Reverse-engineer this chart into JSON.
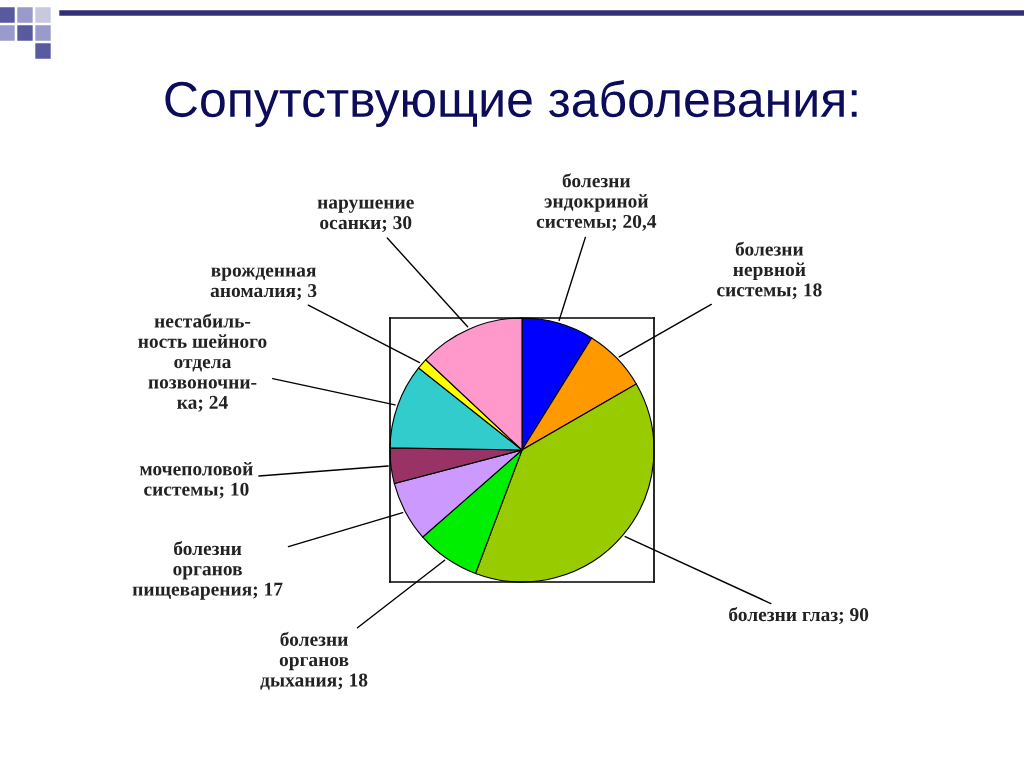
{
  "chart_data": {
    "type": "pie",
    "title": "Сопутствующие заболевания:",
    "categories": [
      "болезни\nэндокриной\nсистемы",
      "болезни\nнервной\nсистемы",
      "болезни глаз",
      "болезни\nорганов\nдыхания",
      "болезни\nорганов\nпищеварения",
      "мочеполовой\nсистемы",
      "нестабиль-\nность шейного\nотдела\nпозвоночни-\nка",
      "врожденная\nаномалия",
      "нарушение\nосанки"
    ],
    "values": [
      20.4,
      18,
      90,
      18,
      17,
      10,
      24,
      3,
      30
    ],
    "value_labels": [
      "20,4",
      "18",
      "90",
      "18",
      "17",
      "10",
      "24",
      "3",
      "30"
    ],
    "colors": [
      "#0000ff",
      "#ff9900",
      "#99cc00",
      "#00ee00",
      "#cc99ff",
      "#993366",
      "#33cccc",
      "#ffff00",
      "#ff99cc"
    ],
    "legend": false
  }
}
